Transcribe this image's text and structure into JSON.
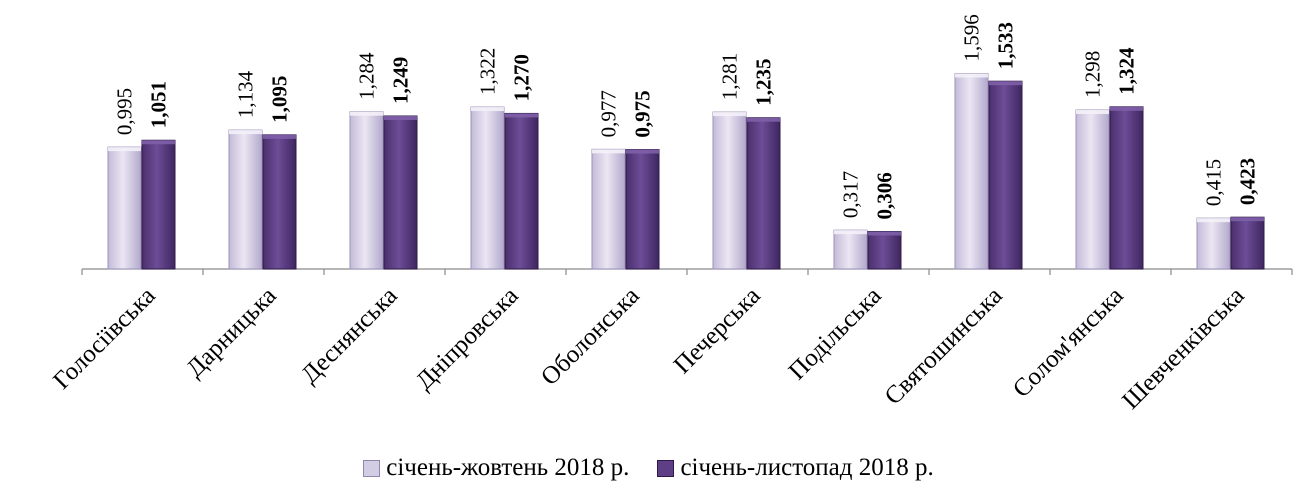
{
  "chart_data": {
    "type": "bar",
    "title": "",
    "xlabel": "",
    "ylabel": "",
    "ylim": [
      0,
      1.75
    ],
    "grid": false,
    "legend_position": "bottom",
    "categories": [
      "Голосіївська",
      "Дарницька",
      "Деснянська",
      "Дніпровська",
      "Оболонська",
      "Печерська",
      "Подільська",
      "Святошинська",
      "Солом'янська",
      "Шевченківська"
    ],
    "series": [
      {
        "name": "січень-жовтень 2018 р.",
        "values": [
          0.995,
          1.134,
          1.284,
          1.322,
          0.977,
          1.281,
          0.317,
          1.596,
          1.298,
          0.415
        ],
        "labels": [
          "0,995",
          "1,134",
          "1,284",
          "1,322",
          "0,977",
          "1,281",
          "0,317",
          "1,596",
          "1,298",
          "0,415"
        ],
        "color": "#d3cde3"
      },
      {
        "name": "січень-листопад 2018 р.",
        "values": [
          1.051,
          1.095,
          1.249,
          1.27,
          0.975,
          1.235,
          0.306,
          1.533,
          1.324,
          0.423
        ],
        "labels": [
          "1,051",
          "1,095",
          "1,249",
          "1,270",
          "0,975",
          "1,235",
          "0,306",
          "1,533",
          "1,324",
          "0,423"
        ],
        "color": "#5e3f86"
      }
    ]
  }
}
